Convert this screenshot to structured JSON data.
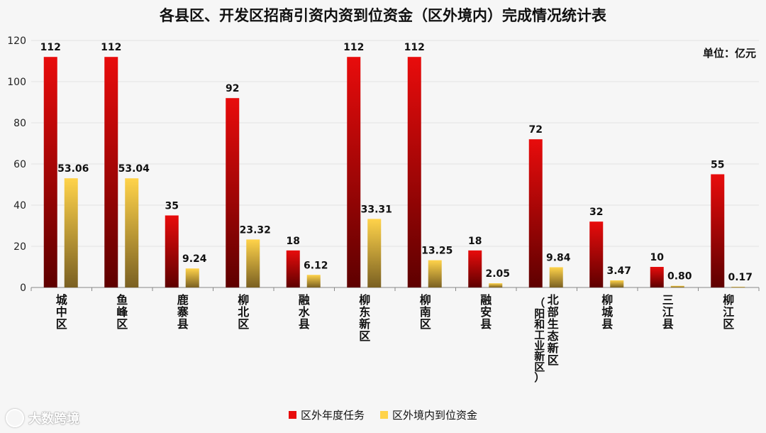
{
  "chart_data": {
    "type": "bar",
    "title": "各县区、开发区招商引资内资到位资金（区外境内）完成情况统计表",
    "unit": "单位：亿元",
    "categories": [
      "城中区",
      "鱼峰区",
      "鹿寨县",
      "柳北区",
      "融水县",
      "柳东新区",
      "柳南区",
      "融安县",
      "北部生态新区（阳和工业新区）",
      "柳城县",
      "三江县",
      "柳江区"
    ],
    "category_lines": [
      [
        "城",
        "中",
        "区"
      ],
      [
        "鱼",
        "峰",
        "区"
      ],
      [
        "鹿",
        "寨",
        "县"
      ],
      [
        "柳",
        "北",
        "区"
      ],
      [
        "融",
        "水",
        "县"
      ],
      [
        "柳",
        "东",
        "新",
        "区"
      ],
      [
        "柳",
        "南",
        "区"
      ],
      [
        "融",
        "安",
        "县"
      ],
      [
        "北",
        "部",
        "生",
        "态",
        "新",
        "区"
      ],
      [
        "柳",
        "城",
        "县"
      ],
      [
        "三",
        "江",
        "县"
      ],
      [
        "柳",
        "江",
        "区"
      ]
    ],
    "category_sub_lines": [
      [],
      [],
      [],
      [],
      [],
      [],
      [],
      [],
      [
        "（",
        "阳",
        "和",
        "工",
        "业",
        "新",
        "区",
        "）"
      ],
      [],
      [],
      []
    ],
    "series": [
      {
        "name": "区外年度任务",
        "values": [
          112,
          112,
          35,
          92,
          18,
          112,
          112,
          18,
          72,
          32,
          10,
          55
        ],
        "labels": [
          "112",
          "112",
          "35",
          "92",
          "18",
          "112",
          "112",
          "18",
          "72",
          "32",
          "10",
          "55"
        ]
      },
      {
        "name": "区外境内到位资金",
        "values": [
          53.06,
          53.04,
          9.24,
          23.32,
          6.12,
          33.31,
          13.25,
          2.05,
          9.84,
          3.47,
          0.8,
          0.17
        ],
        "labels": [
          "53.06",
          "53.04",
          "9.24",
          "23.32",
          "6.12",
          "33.31",
          "13.25",
          "2.05",
          "9.84",
          "3.47",
          "0.80",
          "0.17"
        ]
      }
    ],
    "ylim": [
      0,
      120
    ],
    "yticks": [
      "0",
      "20",
      "40",
      "60",
      "80",
      "100",
      "120"
    ],
    "grid": true,
    "legend_position": "bottom",
    "colors": {
      "task_top": "#e80c0c",
      "task_bottom": "#5e0000",
      "funds_top": "#ffd34a",
      "funds_bottom": "#7a6022",
      "axis": "#888888"
    }
  },
  "watermark": {
    "icon": "logo-icon",
    "text": "大数跨境"
  }
}
